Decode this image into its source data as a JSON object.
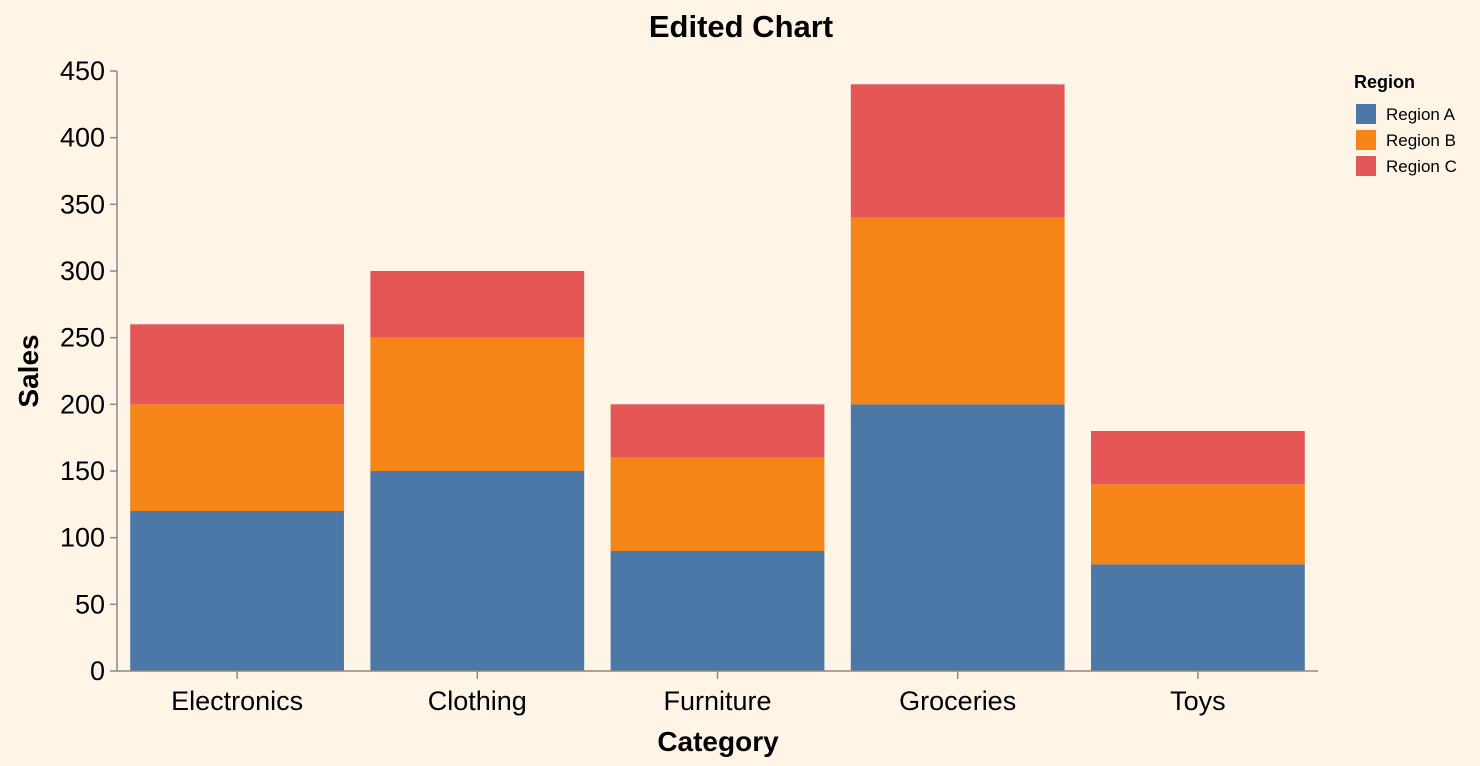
{
  "chart_data": {
    "type": "bar",
    "stacked": true,
    "title": "Edited Chart",
    "xlabel": "Category",
    "ylabel": "Sales",
    "categories": [
      "Electronics",
      "Clothing",
      "Furniture",
      "Groceries",
      "Toys"
    ],
    "series": [
      {
        "name": "Region A",
        "color": "#4c78a8",
        "values": [
          120,
          150,
          90,
          200,
          80
        ]
      },
      {
        "name": "Region B",
        "color": "#f58518",
        "values": [
          80,
          100,
          70,
          140,
          60
        ]
      },
      {
        "name": "Region C",
        "color": "#e45756",
        "values": [
          60,
          50,
          40,
          100,
          40
        ]
      }
    ],
    "ylim": [
      0,
      450
    ],
    "yticks": [
      0,
      50,
      100,
      150,
      200,
      250,
      300,
      350,
      400,
      450
    ],
    "grid": false,
    "legend": {
      "title": "Region",
      "position": "top-right"
    }
  }
}
